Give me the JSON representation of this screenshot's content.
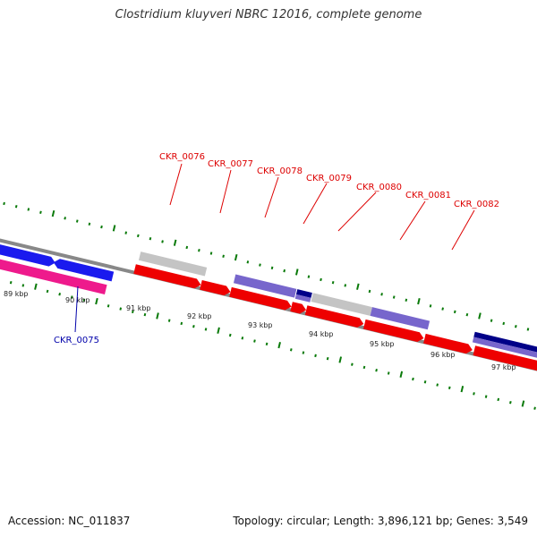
{
  "title": "Clostridium kluyveri NBRC 12016, complete genome",
  "footer": {
    "accession": "Accession: NC_011837",
    "summary": "Topology: circular; Length: 3,896,121 bp; Genes: 3,549"
  },
  "colors": {
    "forward_cds": "#ee0000",
    "reverse_cds_blue": "#1a1aee",
    "reverse_cds_pink": "#ee1a8c",
    "feature_grey": "#c0c0c0",
    "feature_lavender": "#7766cc",
    "feature_navy": "#000088",
    "tick": "#0a7a0a",
    "backbone": "#888888",
    "label_top": "#dd0000",
    "label_bottom": "#0000aa"
  },
  "scale": {
    "unit": "kbp",
    "ticks": [
      {
        "kbp": 89,
        "label": "89 kbp"
      },
      {
        "kbp": 90,
        "label": "90 kbp"
      },
      {
        "kbp": 91,
        "label": "91 kbp"
      },
      {
        "kbp": 92,
        "label": "92 kbp"
      },
      {
        "kbp": 93,
        "label": "93 kbp"
      },
      {
        "kbp": 94,
        "label": "94 kbp"
      },
      {
        "kbp": 95,
        "label": "95 kbp"
      },
      {
        "kbp": 96,
        "label": "96 kbp"
      },
      {
        "kbp": 97,
        "label": "97 kbp"
      }
    ]
  },
  "gene_labels": [
    {
      "text": "CKR_0075",
      "color": "#0000aa"
    },
    {
      "text": "CKR_0076",
      "color": "#dd0000"
    },
    {
      "text": "CKR_0077",
      "color": "#dd0000"
    },
    {
      "text": "CKR_0078",
      "color": "#dd0000"
    },
    {
      "text": "CKR_0079",
      "color": "#dd0000"
    },
    {
      "text": "CKR_0080",
      "color": "#dd0000"
    },
    {
      "text": "CKR_0081",
      "color": "#dd0000"
    },
    {
      "text": "CKR_0082",
      "color": "#dd0000"
    }
  ]
}
